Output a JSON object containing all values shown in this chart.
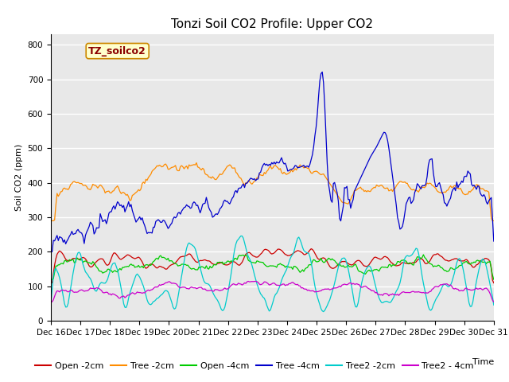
{
  "title": "Tonzi Soil CO2 Profile: Upper CO2",
  "ylabel": "Soil CO2 (ppm)",
  "xlabel": "Time",
  "watermark": "TZ_soilco2",
  "ylim": [
    0,
    830
  ],
  "yticks": [
    0,
    100,
    200,
    300,
    400,
    500,
    600,
    700,
    800
  ],
  "series_labels": [
    "Open -2cm",
    "Tree -2cm",
    "Open -4cm",
    "Tree -4cm",
    "Tree2 -2cm",
    "Tree2 - 4cm"
  ],
  "series_colors": [
    "#cc0000",
    "#ff8c00",
    "#00cc00",
    "#0000cc",
    "#00cccc",
    "#cc00cc"
  ],
  "background_color": "#e8e8e8",
  "n_points": 360,
  "xtick_labels": [
    "Dec 16",
    "Dec 17",
    "Dec 18",
    "Dec 19",
    "Dec 20",
    "Dec 21",
    "Dec 22",
    "Dec 23",
    "Dec 24",
    "Dec 25",
    "Dec 26",
    "Dec 27",
    "Dec 28",
    "Dec 29",
    "Dec 30",
    "Dec 31"
  ],
  "title_fontsize": 11,
  "label_fontsize": 8,
  "tick_fontsize": 7.5,
  "legend_fontsize": 8,
  "watermark_fontsize": 9,
  "linewidth": 0.9,
  "grid_color": "#ffffff",
  "grid_linewidth": 1.0
}
